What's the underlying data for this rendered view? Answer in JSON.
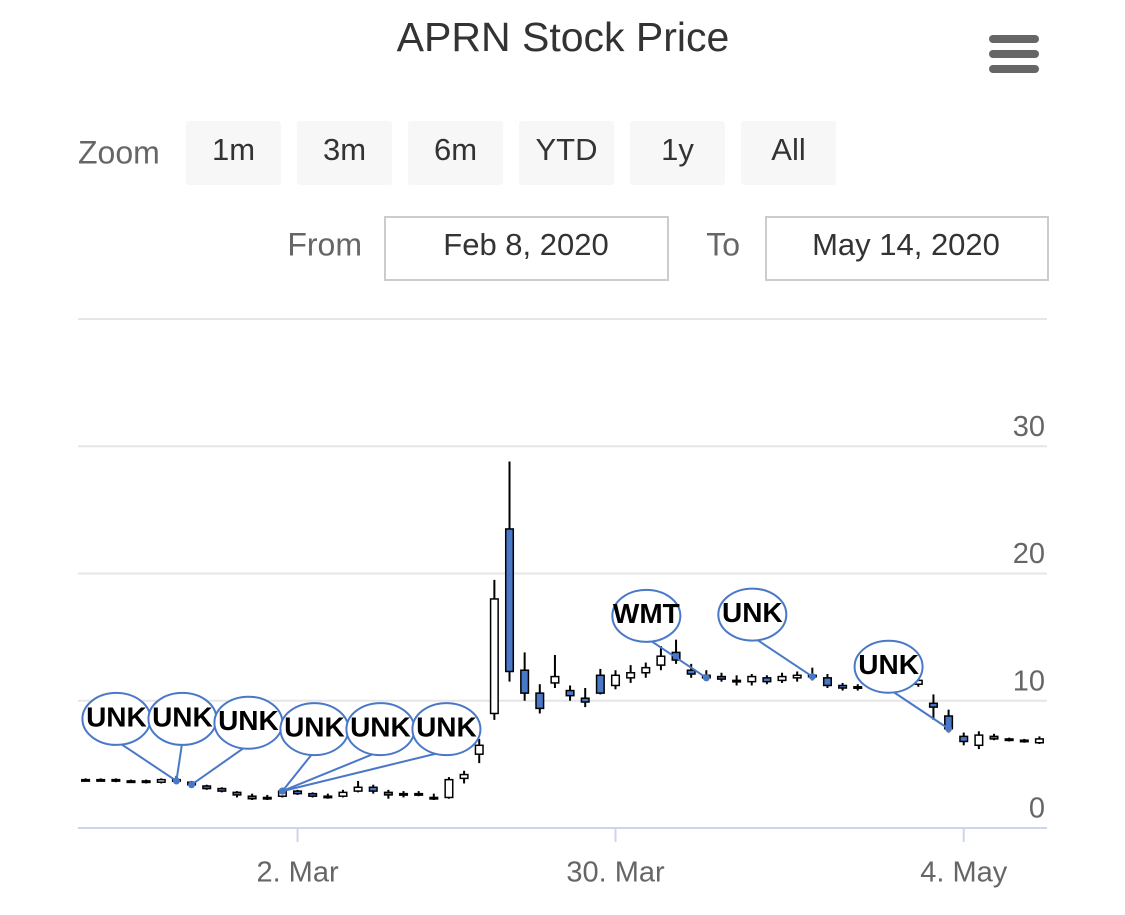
{
  "chart_data": {
    "type": "candlestick",
    "title": "APRN Stock Price",
    "categories": [
      null,
      null,
      null,
      null,
      null,
      null,
      null,
      null,
      null,
      null,
      null,
      null,
      null,
      null,
      "2. Mar",
      null,
      null,
      null,
      null,
      null,
      null,
      null,
      null,
      null,
      null,
      null,
      null,
      null,
      null,
      null,
      null,
      null,
      null,
      null,
      null,
      "30. Mar",
      null,
      null,
      null,
      null,
      null,
      null,
      null,
      null,
      null,
      null,
      null,
      null,
      null,
      null,
      null,
      null,
      null,
      null,
      null,
      null,
      null,
      null,
      "4. May",
      null,
      null,
      null,
      null,
      null
    ],
    "open": [
      3.8,
      3.8,
      3.8,
      3.7,
      3.7,
      3.6,
      3.8,
      3.6,
      3.3,
      3.1,
      2.8,
      2.5,
      2.3,
      2.5,
      2.9,
      2.7,
      2.5,
      2.5,
      2.9,
      3.2,
      2.8,
      2.6,
      2.7,
      2.4,
      2.4,
      3.9,
      5.8,
      9.0,
      23.5,
      12.4,
      10.6,
      11.4,
      10.8,
      10.2,
      12.0,
      11.2,
      11.8,
      12.2,
      12.8,
      13.8,
      12.4,
      12.0,
      11.9,
      11.6,
      11.5,
      11.8,
      11.6,
      11.8,
      12.0,
      11.8,
      11.2,
      11.0,
      11.1,
      11.0,
      11.2,
      11.3,
      9.8,
      8.8,
      7.2,
      6.5,
      7.2,
      7.0,
      6.9,
      6.7
    ],
    "high": [
      3.9,
      3.9,
      3.9,
      3.8,
      3.8,
      3.9,
      4.1,
      3.7,
      3.4,
      3.2,
      2.9,
      2.7,
      2.6,
      3.1,
      3.0,
      2.8,
      2.7,
      3.0,
      3.7,
      3.4,
      3.0,
      2.9,
      2.9,
      2.7,
      4.0,
      4.5,
      7.0,
      19.5,
      28.8,
      13.8,
      11.3,
      13.6,
      11.2,
      11.0,
      12.5,
      12.4,
      12.8,
      13.0,
      14.3,
      14.8,
      12.9,
      12.4,
      12.2,
      12.0,
      12.1,
      12.0,
      12.2,
      12.3,
      12.6,
      12.1,
      11.4,
      11.3,
      11.3,
      11.4,
      11.5,
      12.0,
      10.5,
      9.3,
      7.5,
      7.6,
      7.4,
      7.1,
      7.0,
      7.2
    ],
    "low": [
      3.7,
      3.7,
      3.6,
      3.6,
      3.5,
      3.5,
      3.6,
      3.3,
      3.0,
      2.8,
      2.4,
      2.2,
      2.2,
      2.4,
      2.6,
      2.4,
      2.3,
      2.4,
      2.8,
      2.7,
      2.3,
      2.4,
      2.5,
      2.2,
      2.3,
      3.5,
      5.1,
      8.5,
      11.5,
      10.0,
      9.0,
      11.0,
      10.0,
      9.5,
      10.5,
      10.9,
      11.4,
      11.8,
      12.4,
      12.9,
      11.8,
      11.6,
      11.5,
      11.2,
      11.2,
      11.3,
      11.4,
      11.5,
      11.6,
      11.0,
      10.8,
      10.8,
      10.9,
      10.8,
      11.0,
      11.1,
      8.5,
      7.5,
      6.5,
      6.2,
      6.9,
      6.8,
      6.7,
      6.6
    ],
    "close": [
      3.8,
      3.8,
      3.7,
      3.7,
      3.6,
      3.8,
      3.7,
      3.4,
      3.1,
      2.9,
      2.6,
      2.3,
      2.4,
      2.9,
      2.7,
      2.5,
      2.4,
      2.8,
      3.2,
      2.9,
      2.6,
      2.7,
      2.6,
      2.3,
      3.8,
      4.2,
      6.5,
      18.0,
      12.3,
      10.6,
      9.4,
      11.9,
      10.4,
      9.9,
      10.6,
      12.0,
      12.2,
      12.6,
      13.5,
      13.2,
      12.1,
      11.8,
      11.7,
      11.5,
      11.9,
      11.5,
      11.9,
      12.0,
      11.9,
      11.2,
      11.0,
      11.1,
      11.0,
      11.2,
      11.3,
      11.6,
      9.5,
      7.8,
      6.8,
      7.3,
      7.0,
      6.9,
      6.8,
      7.0
    ],
    "up_color": "#ffffff",
    "down_color": "#4a78c8",
    "line_color": "#000000",
    "ylim": [
      0,
      40
    ],
    "yticks": [
      0,
      10,
      20,
      30
    ],
    "grid": true,
    "flags": {
      "x": [
        6,
        6,
        7,
        13,
        13,
        13,
        41,
        48,
        57
      ],
      "titles": [
        "UNK",
        "UNK",
        "UNK",
        "UNK",
        "UNK",
        "UNK",
        "WMT",
        "UNK",
        "UNK"
      ],
      "color": "#4a78c8"
    }
  },
  "range_selector": {
    "zoom_label": "Zoom",
    "buttons": [
      "1m",
      "3m",
      "6m",
      "YTD",
      "1y",
      "All"
    ],
    "from_label": "From",
    "from": "Feb 8, 2020",
    "to_label": "To",
    "to": "May 14, 2020"
  }
}
